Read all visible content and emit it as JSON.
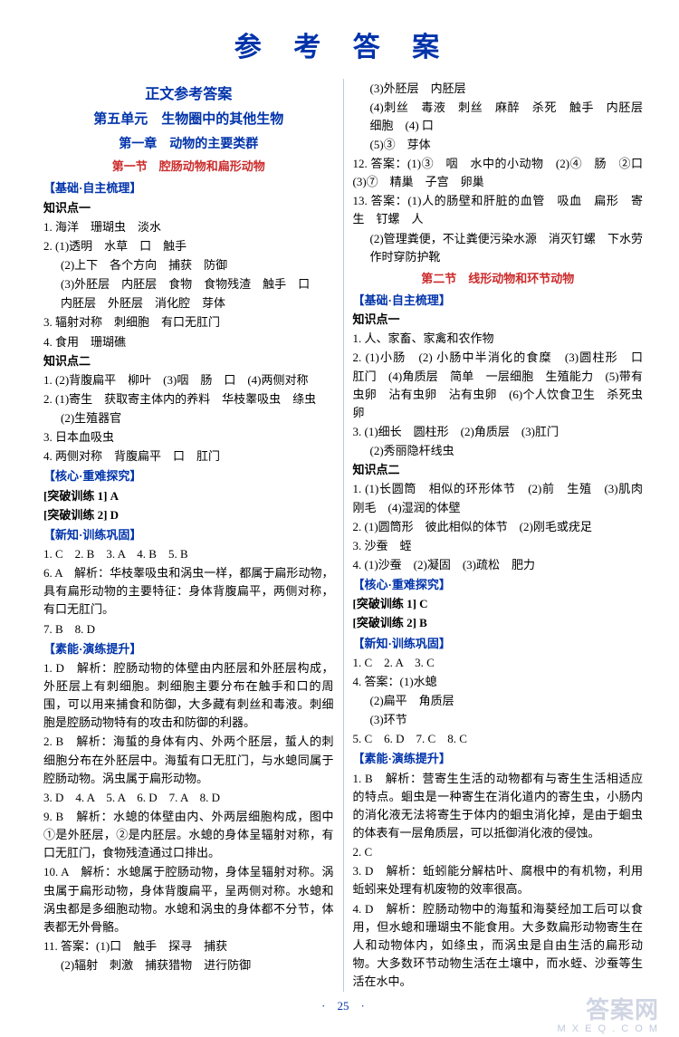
{
  "main_title": "参 考 答 案",
  "left": {
    "subtitle": "正文参考答案",
    "unit": "第五单元　生物圈中的其他生物",
    "chapter": "第一章　动物的主要类群",
    "node1": "第一节　腔肠动物和扁形动物",
    "g1": "【基础·自主梳理】",
    "k1": "知识点一",
    "l1": "1. 海洋　珊瑚虫　淡水",
    "l2": "2. (1)透明　水草　口　触手",
    "l2b": "(2)上下　各个方向　捕获　防御",
    "l2c": "(3)外胚层　内胚层　食物　食物残渣　触手　口",
    "l2d": "内胚层　外胚层　消化腔　芽体",
    "l3": "3. 辐射对称　刺细胞　有口无肛门",
    "l4": "4. 食用　珊瑚礁",
    "k2": "知识点二",
    "l5": "1. (2)背腹扁平　柳叶　(3)咽　肠　口　(4)两侧对称",
    "l6": "2. (1)寄生　获取寄主体内的养料　华枝睾吸虫　绦虫",
    "l6b": "(2)生殖器官",
    "l7": "3. 日本血吸虫",
    "l8": "4. 两侧对称　背腹扁平　口　肛门",
    "g2": "【核心·重难探究】",
    "b1": "[突破训练 1] A",
    "b2": "[突破训练 2] D",
    "g3": "【新知·训练巩固】",
    "l9": "1. C　2. B　3. A　4. B　5. B",
    "l10": "6. A　解析：华枝睾吸虫和涡虫一样，都属于扁形动物，具有扁形动物的主要特征：身体背腹扁平，两侧对称，有口无肛门。",
    "l11": "7. B　8. D",
    "g4": "【素能·演练提升】",
    "l12": "1. D　解析：腔肠动物的体壁由内胚层和外胚层构成，外胚层上有刺细胞。刺细胞主要分布在触手和口的周围，可以用来捕食和防御，大多藏有刺丝和毒液。刺细胞是腔肠动物特有的攻击和防御的利器。",
    "l13": "2. B　解析：海蜇的身体有内、外两个胚层，蜇人的刺细胞分布在外胚层中。海蜇有口无肛门，与水螅同属于腔肠动物。涡虫属于扁形动物。",
    "l14": "3. D　4. A　5. A　6. D　7. A　8. D",
    "l15": "9. B　解析：水螅的体壁由内、外两层细胞构成，图中①是外胚层，②是内胚层。水螅的身体呈辐射对称，有口无肛门，食物残渣通过口排出。",
    "l16": "10. A　解析：水螅属于腔肠动物，身体呈辐射对称。涡虫属于扁形动物，身体背腹扁平，呈两侧对称。水螅和涡虫都是多细胞动物。水螅和涡虫的身体都不分节，体表都无外骨骼。",
    "l17": "11. 答案：(1)口　触手　探寻　捕获",
    "l17b": "(2)辐射　刺激　捕获猎物　进行防御"
  },
  "right": {
    "r1": "(3)外胚层　内胚层",
    "r2": "(4)刺丝　毒液　刺丝　麻醉　杀死　触手　内胚层　细胞　(4) 口",
    "r3": "(5)③　芽体",
    "r4": "12. 答案：(1)③　咽　水中的小动物　(2)④　肠　②口　(3)⑦　精巢　子宫　卵巢",
    "r5": "13. 答案：(1)人的肠壁和肝脏的血管　吸血　扁形　寄生　钉螺　人",
    "r5b": "(2)管理粪便，不让粪便污染水源　消灭钉螺　下水劳作时穿防护靴",
    "node2": "第二节　线形动物和环节动物",
    "g1": "【基础·自主梳理】",
    "k1": "知识点一",
    "r6": "1. 人、家畜、家禽和农作物",
    "r7": "2. (1)小肠　(2) 小肠中半消化的食糜　(3)圆柱形　口　肛门　(4)角质层　简单　一层细胞　生殖能力　(5)带有虫卵　沾有虫卵　沾有虫卵　(6)个人饮食卫生　杀死虫卵",
    "r8": "3. (1)细长　圆柱形　(2)角质层　(3)肛门",
    "r8b": "(2)秀丽隐杆线虫",
    "k2": "知识点二",
    "r9": "1. (1)长圆筒　相似的环形体节　(2)前　生殖　(3)肌肉　刚毛　(4)湿润的体壁",
    "r10": "2. (1)圆筒形　彼此相似的体节　(2)刚毛或疣足",
    "r11": "3. 沙蚕　蛭",
    "r12": "4. (1)沙蚕　(2)凝固　(3)疏松　肥力",
    "g2": "【核心·重难探究】",
    "b1": "[突破训练 1] C",
    "b2": "[突破训练 2] B",
    "g3": "【新知·训练巩固】",
    "r13": "1. C　2. A　3. C",
    "r14": "4. 答案：(1)水螅",
    "r14b": "(2)扁平　角质层",
    "r14c": "(3)环节",
    "r15": "5. C　6. D　7. C　8. C",
    "g4": "【素能·演练提升】",
    "r16": "1. B　解析：营寄生生活的动物都有与寄生生活相适应的特点。蛔虫是一种寄生在消化道内的寄生虫，小肠内的消化液无法将寄生于体内的蛔虫消化掉，是由于蛔虫的体表有一层角质层，可以抵御消化液的侵蚀。",
    "r17": "2. C",
    "r18": "3. D　解析：蚯蚓能分解枯叶、腐根中的有机物，利用蚯蚓来处理有机废物的效率很高。",
    "r19": "4. D　解析：腔肠动物中的海蜇和海葵经加工后可以食用，但水螅和珊瑚虫不能食用。大多数扁形动物寄生在人和动物体内，如绦虫，而涡虫是自由生活的扁形动物。大多数环节动物生活在土壤中，而水蛭、沙蚕等生活在水中。"
  },
  "pagenum": "·　25　·",
  "wm1": "答案网",
  "wm2": "M X E Q . C O M"
}
